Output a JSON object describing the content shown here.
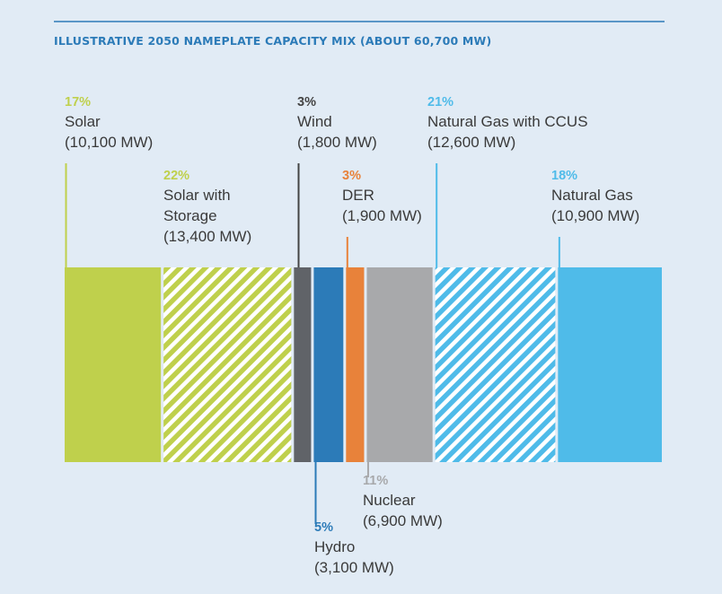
{
  "chart_data": {
    "type": "bar",
    "title": "ILLUSTRATIVE 2050 NAMEPLATE CAPACITY MIX (ABOUT 60,700 MW)",
    "unit": "MW",
    "segments": [
      {
        "name": "Solar",
        "percent_label": "17%",
        "mw_label": "(10,100 MW)",
        "value": 10100,
        "color": "#bfd04c",
        "hatched": false
      },
      {
        "name": "Solar with Storage",
        "name_lines": [
          "Solar with",
          "Storage"
        ],
        "percent_label": "22%",
        "mw_label": "(13,400 MW)",
        "value": 13400,
        "color": "#bfd04c",
        "hatched": true
      },
      {
        "name": "Wind",
        "percent_label": "3%",
        "mw_label": "(1,800 MW)",
        "value": 1800,
        "color": "#606368",
        "hatched": false
      },
      {
        "name": "Hydro",
        "percent_label": "5%",
        "mw_label": "(3,100 MW)",
        "value": 3100,
        "color": "#2c7bb8",
        "hatched": false
      },
      {
        "name": "DER",
        "percent_label": "3%",
        "mw_label": "(1,900 MW)",
        "value": 1900,
        "color": "#e8823a",
        "hatched": false
      },
      {
        "name": "Nuclear",
        "percent_label": "11%",
        "mw_label": "(6,900 MW)",
        "value": 6900,
        "color": "#a8a9ab",
        "hatched": false
      },
      {
        "name": "Natural Gas with CCUS",
        "percent_label": "21%",
        "mw_label": "(12,600 MW)",
        "value": 12600,
        "color": "#4fbbe9",
        "hatched": true
      },
      {
        "name": "Natural Gas",
        "percent_label": "18%",
        "mw_label": "(10,900 MW)",
        "value": 10900,
        "color": "#4fbbe9",
        "hatched": false
      }
    ],
    "percent_colors": [
      "#bfd04c",
      "#bfd04c",
      "#444444",
      "#2c7bb8",
      "#e8823a",
      "#a8a9ab",
      "#4fbbe9",
      "#4fbbe9"
    ]
  },
  "title_color": "#2c7bb8"
}
